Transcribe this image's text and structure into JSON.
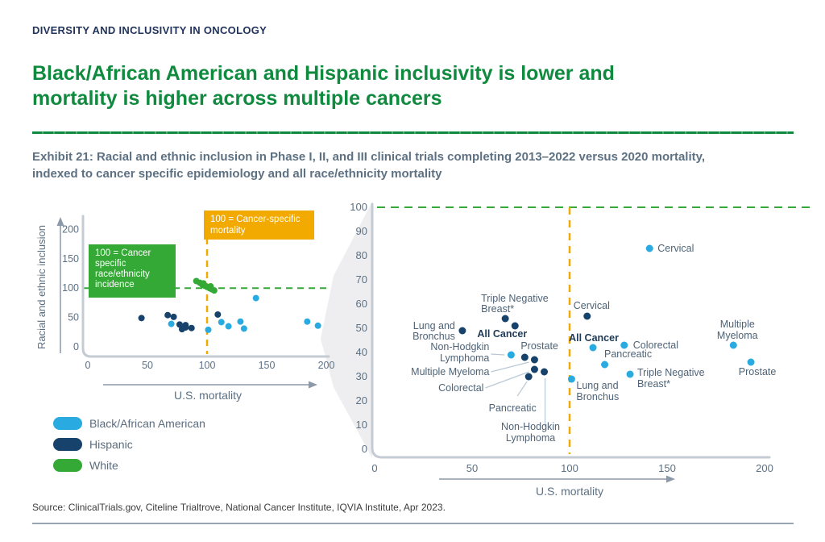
{
  "eyebrow": "DIVERSITY AND INCLUSIVITY IN ONCOLOGY",
  "title": "Black/African American and Hispanic inclusivity is lower and mortality is higher across multiple cancers",
  "exhibit_caption": "Exhibit 21: Racial and ethnic inclusion in Phase I, II, and III clinical trials completing 2013–2022 versus 2020 mortality, indexed to cancer specific epidemiology and all race/ethnicity mortality",
  "source": "Source: ClinicalTrials.gov, Citeline Trialtrove, National Cancer Institute, IQVIA Institute, Apr 2023.",
  "colors": {
    "light_blue": "#29ABE2",
    "navy": "#16426B",
    "green": "#35A936",
    "amber": "#F2A900",
    "title_green": "#0F8A3E",
    "heading_navy": "#22335C",
    "text_gray": "#5C7083",
    "axis_gray": "#C5CBD3",
    "arrow_gray": "#8C99A8",
    "leader_gray": "#B9C8D6",
    "label_gray": "#4E6377",
    "label_bold_navy": "#1F3A57",
    "funnel_gray": "#EEEEF0"
  },
  "legend": [
    {
      "label": "Black/African American",
      "color_key": "light_blue"
    },
    {
      "label": "Hispanic",
      "color_key": "navy"
    },
    {
      "label": "White",
      "color_key": "green"
    }
  ],
  "chart_data": [
    {
      "id": "overview",
      "type": "scatter",
      "title": "",
      "xlabel": "U.S. mortality",
      "ylabel": "Racial and ethnic inclusion",
      "xlim": [
        0,
        210
      ],
      "ylim": [
        0,
        215
      ],
      "xticks": [
        0,
        50,
        100,
        150,
        200
      ],
      "yticks": [
        0,
        50,
        100,
        150,
        200
      ],
      "grid": false,
      "ref_lines": [
        {
          "axis": "y",
          "value": 100,
          "color_key": "green",
          "style": "dashed"
        },
        {
          "axis": "x",
          "value": 100,
          "color_key": "amber",
          "style": "dashed"
        }
      ],
      "boxes": [
        {
          "name": "incidence-annotation",
          "color_key": "green",
          "lines": [
            "100 = Cancer",
            "specific",
            "race/ethnicity",
            "incidence"
          ]
        },
        {
          "name": "mortality-annotation",
          "color_key": "amber",
          "lines": [
            "100 = Cancer-specific",
            "mortality"
          ]
        }
      ],
      "series": [
        {
          "name": "Black/African American",
          "color_key": "light_blue",
          "values": [
            [
              70,
              39
            ],
            [
              101,
              29
            ],
            [
              112,
              42
            ],
            [
              118,
              35
            ],
            [
              128,
              43
            ],
            [
              131,
              31
            ],
            [
              141,
              83
            ],
            [
              184,
              43
            ],
            [
              193,
              36
            ]
          ]
        },
        {
          "name": "Hispanic",
          "color_key": "navy",
          "values": [
            [
              45,
              49
            ],
            [
              67,
              54
            ],
            [
              72,
              51
            ],
            [
              77,
              38
            ],
            [
              79,
              30
            ],
            [
              82,
              37
            ],
            [
              82,
              33
            ],
            [
              87,
              32
            ],
            [
              109,
              55
            ]
          ]
        },
        {
          "name": "White",
          "color_key": "green",
          "values": [
            [
              91,
              112
            ],
            [
              94,
              109
            ],
            [
              96,
              106
            ],
            [
              97,
              108
            ],
            [
              98,
              104
            ],
            [
              100,
              102
            ],
            [
              102,
              100
            ],
            [
              103,
              103
            ],
            [
              104,
              98
            ],
            [
              106,
              96
            ]
          ]
        }
      ]
    },
    {
      "id": "zoom",
      "type": "scatter",
      "title": "",
      "xlabel": "U.S. mortality",
      "ylabel": "",
      "xlim": [
        0,
        210
      ],
      "ylim": [
        0,
        103
      ],
      "xticks": [
        0,
        50,
        100,
        150,
        200
      ],
      "yticks": [
        0,
        10,
        20,
        30,
        40,
        50,
        60,
        70,
        80,
        90,
        100
      ],
      "grid": false,
      "ref_lines": [
        {
          "axis": "y",
          "value": 100,
          "color_key": "green",
          "style": "dashed"
        },
        {
          "axis": "x",
          "value": 100,
          "color_key": "amber",
          "style": "dashed"
        }
      ],
      "series": [
        {
          "name": "Black/African American",
          "color_key": "light_blue",
          "points": [
            {
              "x": 70,
              "y": 39,
              "cancer": "Non-Hodgkin Lymphoma",
              "label": [
                "Non-Hodgkin",
                "Lymphoma"
              ],
              "anchor": "end",
              "dx": -27,
              "dy": -6,
              "lh": 14,
              "leader": [
                -25,
                -1,
                -8,
                0
              ]
            },
            {
              "x": 101,
              "y": 29,
              "cancer": "Lung and Bronchus",
              "label": [
                "Lung and",
                "Bronchus"
              ],
              "anchor": "start",
              "dx": 6,
              "dy": 12,
              "lh": 14
            },
            {
              "x": 112,
              "y": 42,
              "cancer": "All Cancer",
              "label": [
                "All Cancer"
              ],
              "anchor": "middle",
              "dx": 1,
              "dy": -8,
              "bold": true
            },
            {
              "x": 118,
              "y": 35,
              "cancer": "Pancreatic",
              "label": [
                "Pancreatic"
              ],
              "anchor": "middle",
              "dx": 29,
              "dy": -9
            },
            {
              "x": 128,
              "y": 43,
              "cancer": "Colorectal",
              "label": [
                "Colorectal"
              ],
              "anchor": "start",
              "dx": 11,
              "dy": 4
            },
            {
              "x": 131,
              "y": 31,
              "cancer": "Triple Negative Breast*",
              "label": [
                "Triple Negative",
                "Breast*"
              ],
              "anchor": "start",
              "dx": 9,
              "dy": 2,
              "lh": 14
            },
            {
              "x": 141,
              "y": 83,
              "cancer": "Cervical",
              "label": [
                "Cervical"
              ],
              "anchor": "start",
              "dx": 10,
              "dy": 4
            },
            {
              "x": 184,
              "y": 43,
              "cancer": "Multiple Myeloma",
              "label": [
                "Multiple",
                "Myeloma"
              ],
              "anchor": "middle",
              "dx": 5,
              "dy": -22,
              "lh": 14
            },
            {
              "x": 193,
              "y": 36,
              "cancer": "Prostate",
              "label": [
                "Prostate"
              ],
              "anchor": "middle",
              "dx": 8,
              "dy": 16
            }
          ]
        },
        {
          "name": "Hispanic",
          "color_key": "navy",
          "points": [
            {
              "x": 45,
              "y": 49,
              "cancer": "Lung and Bronchus",
              "label": [
                "Lung and",
                "Bronchus"
              ],
              "anchor": "end",
              "dx": -9,
              "dy": -2,
              "lh": 13
            },
            {
              "x": 67,
              "y": 54,
              "cancer": "Triple Negative Breast*",
              "label": [
                "Triple Negative",
                "Breast*"
              ],
              "anchor": "start",
              "dx": -30,
              "dy": -21,
              "lh": 13
            },
            {
              "x": 72,
              "y": 51,
              "cancer": "All Cancer",
              "label": [
                "All Cancer"
              ],
              "anchor": "end",
              "dx": 15,
              "dy": 14,
              "bold": true
            },
            {
              "x": 77,
              "y": 38,
              "cancer": "Prostate",
              "label": [
                "Prostate"
              ],
              "anchor": "start",
              "dx": -5,
              "dy": -10
            },
            {
              "x": 82,
              "y": 37,
              "cancer": "Multiple Myeloma",
              "label": [
                "Multiple Myeloma"
              ],
              "anchor": "end",
              "dx": -56,
              "dy": 19,
              "leader": [
                -54,
                15,
                -7,
                3
              ]
            },
            {
              "x": 82,
              "y": 33,
              "cancer": "Colorectal",
              "label": [
                "Colorectal"
              ],
              "anchor": "end",
              "dx": -63,
              "dy": 27,
              "leader": [
                -61,
                23,
                -7,
                3
              ]
            },
            {
              "x": 79,
              "y": 30,
              "cancer": "Pancreatic",
              "label": [
                "Pancreatic"
              ],
              "anchor": "middle",
              "dx": -20,
              "dy": 43,
              "leader": [
                -14,
                24,
                -2,
                6
              ]
            },
            {
              "x": 87,
              "y": 32,
              "cancer": "Non-Hodgkin Lymphoma",
              "label": [
                "Non-Hodgkin",
                "Lymphoma"
              ],
              "anchor": "middle",
              "dx": -17,
              "dy": 72,
              "lh": 14,
              "leader": [
                1,
                68,
                1,
                8
              ]
            },
            {
              "x": 109,
              "y": 55,
              "cancer": "Cervical",
              "label": [
                "Cervical"
              ],
              "anchor": "start",
              "dx": -17,
              "dy": -9
            }
          ]
        }
      ]
    }
  ]
}
